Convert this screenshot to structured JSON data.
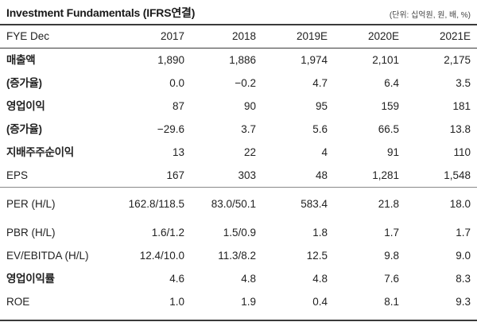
{
  "header": {
    "title": "Investment Fundamentals (IFRS연결)",
    "unit": "(단위: 십억원, 원, 배, %)"
  },
  "table": {
    "columns": [
      "FYE Dec",
      "2017",
      "2018",
      "2019E",
      "2020E",
      "2021E"
    ],
    "rows": [
      {
        "label": "매출액",
        "values": [
          "1,890",
          "1,886",
          "1,974",
          "2,101",
          "2,175"
        ]
      },
      {
        "label": "(증가율)",
        "values": [
          "0.0",
          "−0.2",
          "4.7",
          "6.4",
          "3.5"
        ]
      },
      {
        "label": "영업이익",
        "values": [
          "87",
          "90",
          "95",
          "159",
          "181"
        ]
      },
      {
        "label": "(증가율)",
        "values": [
          "−29.6",
          "3.7",
          "5.6",
          "66.5",
          "13.8"
        ]
      },
      {
        "label": "지배주주순이익",
        "values": [
          "13",
          "22",
          "4",
          "91",
          "110"
        ]
      },
      {
        "label": "EPS",
        "values": [
          "167",
          "303",
          "48",
          "1,281",
          "1,548"
        ]
      },
      {
        "label": "PER (H/L)",
        "values": [
          "162.8/118.5",
          "83.0/50.1",
          "583.4",
          "21.8",
          "18.0"
        ]
      },
      {
        "label": "PBR (H/L)",
        "values": [
          "1.6/1.2",
          "1.5/0.9",
          "1.8",
          "1.7",
          "1.7"
        ]
      },
      {
        "label": "EV/EBITDA (H/L)",
        "values": [
          "12.4/10.0",
          "11.3/8.2",
          "12.5",
          "9.8",
          "9.0"
        ]
      },
      {
        "label": "영업이익률",
        "values": [
          "4.6",
          "4.8",
          "4.8",
          "7.6",
          "8.3"
        ]
      },
      {
        "label": "ROE",
        "values": [
          "1.0",
          "1.9",
          "0.4",
          "8.1",
          "9.3"
        ]
      }
    ]
  }
}
